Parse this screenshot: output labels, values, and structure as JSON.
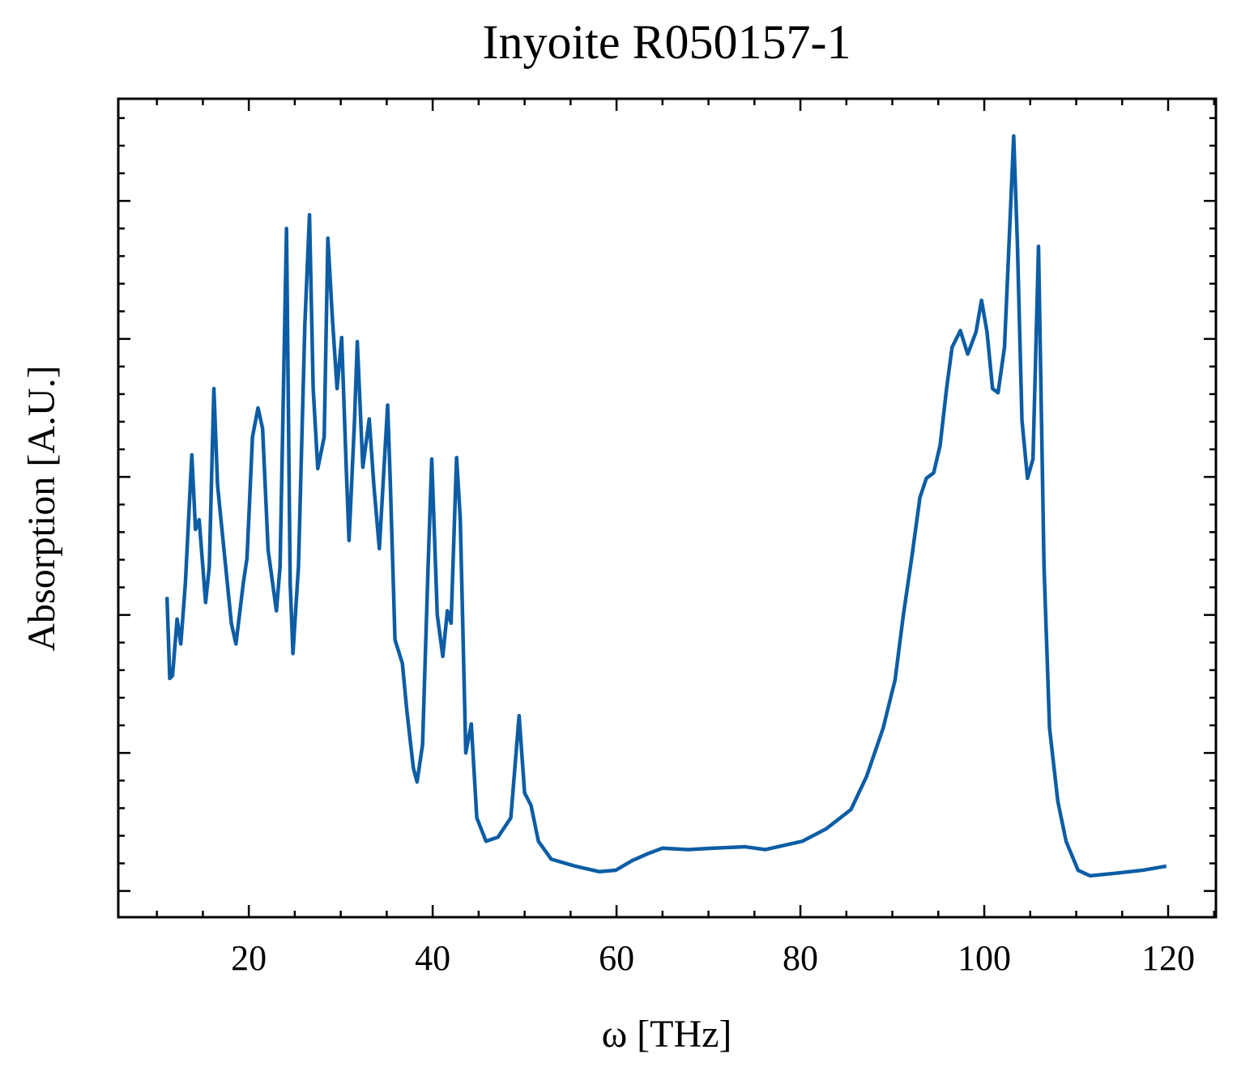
{
  "chart_data": {
    "type": "line",
    "title": "Inyoite R050157-1",
    "x_label": "ω [THz]",
    "y_label": "Absorption [A.U.]",
    "xlim": [
      5.8,
      125.2
    ],
    "ylim": [
      -0.19,
      5.74
    ],
    "xticks": [
      20,
      40,
      60,
      80,
      100,
      120
    ],
    "yticks": [
      0,
      1,
      2,
      3,
      4,
      5
    ],
    "xminorticks": [
      10,
      15,
      25,
      30,
      35,
      45,
      50,
      55,
      65,
      70,
      75,
      85,
      90,
      95,
      105,
      110,
      115,
      125
    ],
    "yminorticks": [
      0.2,
      0.4,
      0.6,
      0.8,
      1.2,
      1.4,
      1.6,
      1.8,
      2.2,
      2.4,
      2.6,
      2.8,
      3.2,
      3.4,
      3.6,
      3.8,
      4.2,
      4.4,
      4.6,
      4.8,
      5.2,
      5.4,
      5.6
    ],
    "series": [
      {
        "name": "Inyoite R050157-1",
        "color": "#0c5da5",
        "x": [
          11.1,
          11.4,
          11.7,
          12.2,
          12.6,
          13.1,
          13.8,
          14.2,
          14.6,
          15.3,
          15.7,
          16.2,
          16.6,
          17.3,
          18.1,
          18.6,
          19.4,
          19.8,
          20.4,
          21.0,
          21.5,
          22.1,
          23.0,
          23.4,
          24.1,
          24.5,
          24.8,
          25.4,
          26.1,
          26.6,
          27.0,
          27.5,
          28.2,
          28.6,
          29.1,
          29.6,
          30.1,
          30.6,
          30.9,
          31.5,
          31.8,
          32.4,
          33.1,
          33.6,
          34.2,
          34.7,
          35.1,
          35.4,
          35.9,
          36.7,
          37.2,
          37.9,
          38.3,
          38.9,
          39.5,
          39.9,
          40.5,
          41.1,
          41.6,
          42.0,
          42.6,
          43.0,
          43.6,
          44.2,
          44.8,
          45.8,
          47.1,
          48.5,
          49.4,
          50.0,
          50.7,
          51.5,
          52.9,
          55.5,
          58.1,
          59.9,
          61.7,
          63.4,
          65.0,
          67.8,
          70.5,
          74.0,
          76.2,
          80.2,
          82.8,
          85.5,
          87.2,
          89.0,
          90.3,
          91.2,
          92.1,
          93.0,
          93.7,
          94.5,
          95.2,
          95.9,
          96.5,
          97.4,
          98.2,
          99.1,
          99.7,
          100.3,
          100.9,
          101.5,
          102.2,
          102.7,
          103.2,
          103.6,
          104.1,
          104.7,
          105.3,
          105.9,
          106.5,
          107.1,
          108.0,
          108.9,
          110.2,
          111.5,
          114.5,
          117.2,
          119.8
        ],
        "values": [
          2.13,
          1.54,
          1.56,
          1.97,
          1.79,
          2.23,
          3.16,
          2.62,
          2.69,
          2.09,
          2.35,
          3.64,
          2.94,
          2.47,
          1.94,
          1.79,
          2.23,
          2.41,
          3.29,
          3.5,
          3.35,
          2.47,
          2.03,
          2.35,
          4.8,
          2.23,
          1.72,
          2.35,
          4.11,
          4.9,
          3.64,
          3.06,
          3.29,
          4.73,
          4.14,
          3.64,
          4.01,
          3.06,
          2.54,
          3.41,
          3.98,
          3.07,
          3.42,
          2.94,
          2.48,
          3.06,
          3.52,
          2.94,
          1.82,
          1.65,
          1.3,
          0.89,
          0.79,
          1.06,
          2.35,
          3.13,
          2.0,
          1.7,
          2.03,
          1.94,
          3.14,
          2.7,
          1.0,
          1.21,
          0.53,
          0.36,
          0.39,
          0.53,
          1.27,
          0.71,
          0.62,
          0.36,
          0.23,
          0.18,
          0.14,
          0.15,
          0.22,
          0.27,
          0.31,
          0.3,
          0.31,
          0.32,
          0.3,
          0.36,
          0.45,
          0.59,
          0.83,
          1.18,
          1.53,
          2.0,
          2.41,
          2.85,
          2.99,
          3.03,
          3.23,
          3.64,
          3.94,
          4.06,
          3.89,
          4.05,
          4.28,
          4.05,
          3.64,
          3.61,
          3.94,
          4.7,
          5.47,
          4.7,
          3.41,
          2.99,
          3.13,
          4.67,
          2.35,
          1.18,
          0.65,
          0.36,
          0.15,
          0.11,
          0.13,
          0.15,
          0.18
        ]
      }
    ]
  }
}
